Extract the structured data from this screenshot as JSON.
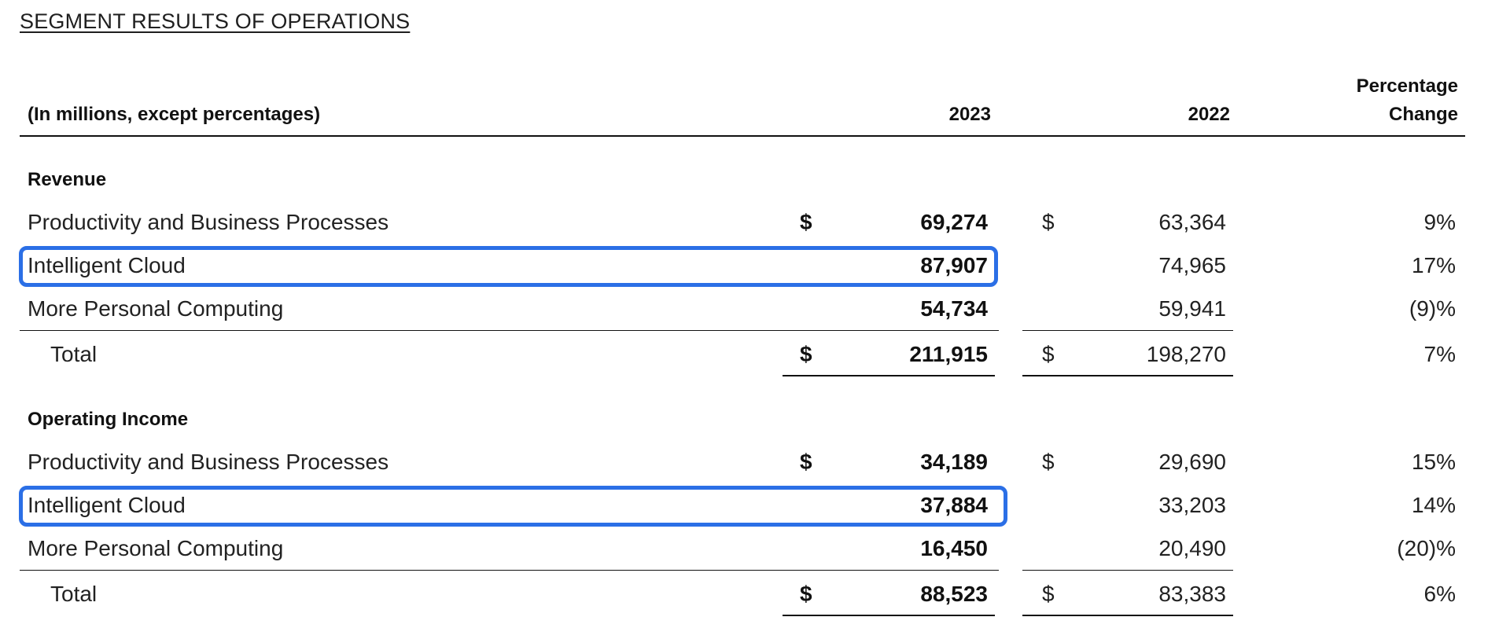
{
  "heading": "SEGMENT RESULTS OF OPERATIONS",
  "table": {
    "header": {
      "label": "(In millions, except percentages)",
      "col_2023": "2023",
      "col_2022": "2022",
      "pct_line1": "Percentage",
      "pct_line2": "Change"
    },
    "currency": "$",
    "revenue": {
      "title": "Revenue",
      "rows": [
        {
          "label": "Productivity and Business Processes",
          "v2023": "69,274",
          "v2022": "63,364",
          "pct": "9%"
        },
        {
          "label": "Intelligent Cloud",
          "v2023": "87,907",
          "v2022": "74,965",
          "pct": "17%"
        },
        {
          "label": "More Personal Computing",
          "v2023": "54,734",
          "v2022": "59,941",
          "pct": "(9)%"
        }
      ],
      "total": {
        "label": "Total",
        "v2023": "211,915",
        "v2022": "198,270",
        "pct": "7%"
      }
    },
    "operating_income": {
      "title": "Operating Income",
      "rows": [
        {
          "label": "Productivity and Business Processes",
          "v2023": "34,189",
          "v2022": "29,690",
          "pct": "15%"
        },
        {
          "label": "Intelligent Cloud",
          "v2023": "37,884",
          "v2022": "33,203",
          "pct": "14%"
        },
        {
          "label": "More Personal Computing",
          "v2023": "16,450",
          "v2022": "20,490",
          "pct": "(20)%"
        }
      ],
      "total": {
        "label": "Total",
        "v2023": "88,523",
        "v2022": "83,383",
        "pct": "6%"
      }
    },
    "highlight_color": "#2b6fe6"
  }
}
